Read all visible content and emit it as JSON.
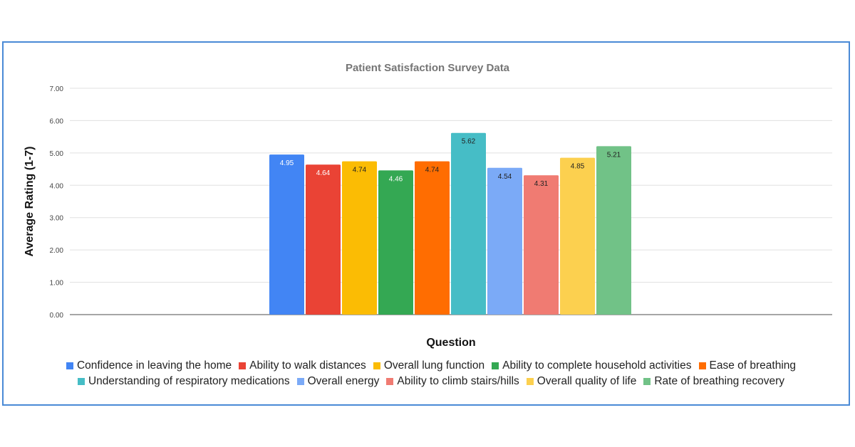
{
  "chart_data": {
    "type": "bar",
    "title": "Patient Satisfaction Survey Data",
    "xlabel": "Question",
    "ylabel": "Average Rating (1-7)",
    "ylim": [
      0,
      7
    ],
    "yticks": [
      "0.00",
      "1.00",
      "2.00",
      "3.00",
      "4.00",
      "5.00",
      "6.00",
      "7.00"
    ],
    "grid": true,
    "legend_position": "bottom",
    "series": [
      {
        "name": "Confidence in leaving the home",
        "value": 4.95,
        "label": "4.95",
        "color": "#4285f4",
        "label_color": "#ffffff"
      },
      {
        "name": "Ability to walk distances",
        "value": 4.64,
        "label": "4.64",
        "color": "#ea4335",
        "label_color": "#ffffff"
      },
      {
        "name": "Overall lung function",
        "value": 4.74,
        "label": "4.74",
        "color": "#fbbc04",
        "label_color": "#222222"
      },
      {
        "name": "Ability to complete household activities",
        "value": 4.46,
        "label": "4.46",
        "color": "#34a853",
        "label_color": "#ffffff"
      },
      {
        "name": "Ease of breathing",
        "value": 4.74,
        "label": "4.74",
        "color": "#ff6d01",
        "label_color": "#222222"
      },
      {
        "name": "Understanding of respiratory medications",
        "value": 5.62,
        "label": "5.62",
        "color": "#46bdc6",
        "label_color": "#222222"
      },
      {
        "name": "Overall energy",
        "value": 4.54,
        "label": "4.54",
        "color": "#7baaf7",
        "label_color": "#222222"
      },
      {
        "name": "Ability to climb stairs/hills",
        "value": 4.31,
        "label": "4.31",
        "color": "#f07b72",
        "label_color": "#222222"
      },
      {
        "name": "Overall quality of life",
        "value": 4.85,
        "label": "4.85",
        "color": "#fcd04f",
        "label_color": "#222222"
      },
      {
        "name": "Rate of breathing recovery",
        "value": 5.21,
        "label": "5.21",
        "color": "#71c287",
        "label_color": "#222222"
      }
    ]
  }
}
